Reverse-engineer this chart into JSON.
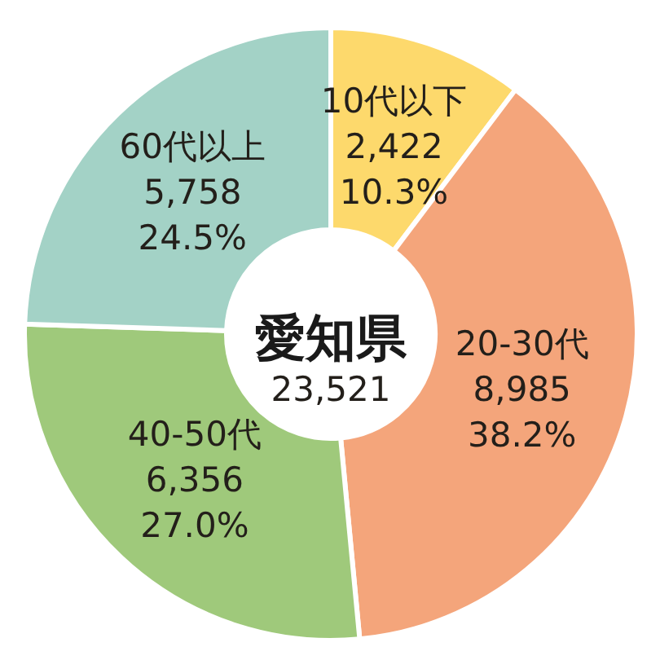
{
  "chart_data": {
    "type": "donut",
    "title": "愛知県",
    "subtitle": "23,521",
    "categories": [
      "10代以下",
      "20-30代",
      "40-50代",
      "60代以上"
    ],
    "values": [
      2422,
      8985,
      6356,
      5758
    ],
    "value_labels": [
      "2,422 10.3%",
      "8,985 38.2%",
      "6,356 27.0%",
      "5,758 24.5%"
    ],
    "colors": [
      "#fdd96c",
      "#f4a57b",
      "#9fc97b",
      "#a3d2c6"
    ]
  }
}
